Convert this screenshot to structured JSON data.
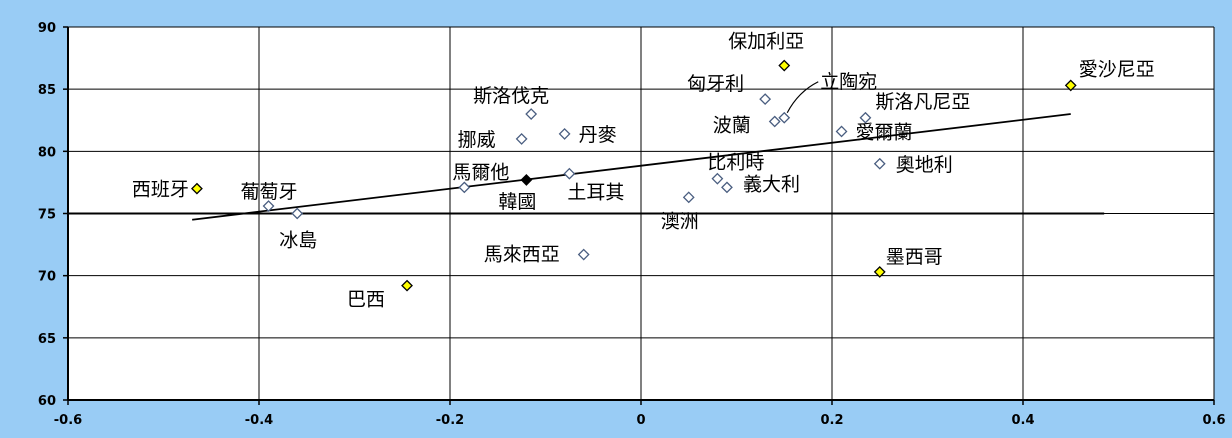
{
  "chart_data": {
    "type": "scatter",
    "title": "",
    "xlabel": "",
    "ylabel": "",
    "xlim": [
      -0.6,
      0.6
    ],
    "ylim": [
      60,
      90
    ],
    "x_ticks": [
      "-0.6",
      "-0.4",
      "-0.2",
      "0",
      "0.2",
      "0.4",
      "0.6"
    ],
    "y_ticks": [
      "60",
      "65",
      "70",
      "75",
      "80",
      "85",
      "90"
    ],
    "grid": true,
    "reference_line_y": 75,
    "trend_line": {
      "x": [
        -0.47,
        0.45
      ],
      "y": [
        74.5,
        83.0
      ]
    },
    "colors": {
      "white": "#FFFFFF",
      "yellow": "#FFFF00",
      "black": "#000000",
      "background": "#99CCF5"
    },
    "points": [
      {
        "label": "西班牙",
        "x": -0.465,
        "y": 77.0,
        "style": "yellow"
      },
      {
        "label": "葡萄牙",
        "x": -0.39,
        "y": 75.6,
        "style": "white"
      },
      {
        "label": "冰島",
        "x": -0.36,
        "y": 75.0,
        "style": "white"
      },
      {
        "label": "巴西",
        "x": -0.245,
        "y": 69.2,
        "style": "yellow"
      },
      {
        "label": "馬爾他",
        "x": -0.185,
        "y": 77.1,
        "style": "white"
      },
      {
        "label": "韓國",
        "x": -0.12,
        "y": 77.7,
        "style": "black"
      },
      {
        "label": "挪威",
        "x": -0.125,
        "y": 81.0,
        "style": "white"
      },
      {
        "label": "斯洛伐克",
        "x": -0.115,
        "y": 83.0,
        "style": "white"
      },
      {
        "label": "丹麥",
        "x": -0.08,
        "y": 81.4,
        "style": "white"
      },
      {
        "label": "土耳其",
        "x": -0.075,
        "y": 78.2,
        "style": "white"
      },
      {
        "label": "馬來西亞",
        "x": -0.06,
        "y": 71.7,
        "style": "white"
      },
      {
        "label": "澳洲",
        "x": 0.05,
        "y": 76.3,
        "style": "white"
      },
      {
        "label": "比利時",
        "x": 0.08,
        "y": 77.8,
        "style": "white"
      },
      {
        "label": "義大利",
        "x": 0.09,
        "y": 77.1,
        "style": "white"
      },
      {
        "label": "匈牙利",
        "x": 0.13,
        "y": 84.2,
        "style": "white"
      },
      {
        "label": "波蘭",
        "x": 0.14,
        "y": 82.4,
        "style": "white"
      },
      {
        "label": "立陶宛",
        "x": 0.15,
        "y": 82.7,
        "style": "white"
      },
      {
        "label": "保加利亞",
        "x": 0.15,
        "y": 86.9,
        "style": "yellow"
      },
      {
        "label": "愛爾蘭",
        "x": 0.21,
        "y": 81.6,
        "style": "white"
      },
      {
        "label": "斯洛凡尼亞",
        "x": 0.235,
        "y": 82.7,
        "style": "white"
      },
      {
        "label": "奧地利",
        "x": 0.25,
        "y": 79.0,
        "style": "white"
      },
      {
        "label": "墨西哥",
        "x": 0.25,
        "y": 70.3,
        "style": "yellow"
      },
      {
        "label": "愛沙尼亞",
        "x": 0.45,
        "y": 85.3,
        "style": "yellow"
      }
    ]
  }
}
